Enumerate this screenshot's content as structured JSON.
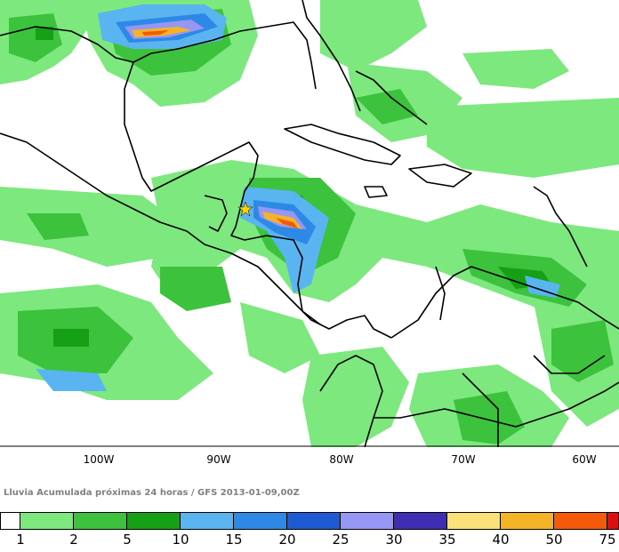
{
  "caption": "Lluvia Acumulada próximas 24 horas / GFS 2013-01-09,00Z",
  "longitude_labels": [
    "100W",
    "90W",
    "80W",
    "70W",
    "60W"
  ],
  "legend": {
    "colors": [
      "#ffffff",
      "#7de87d",
      "#3cc23c",
      "#16a016",
      "#5ab4f0",
      "#2e88e6",
      "#1e5ad2",
      "#9696f5",
      "#3e2eb4",
      "#fae178",
      "#f5b428",
      "#f55a0a",
      "#dc0f0f"
    ],
    "ticks": [
      "1",
      "2",
      "5",
      "10",
      "15",
      "20",
      "25",
      "30",
      "35",
      "40",
      "50",
      "75"
    ]
  },
  "map": {
    "land_color": "#ffffff",
    "border_color": "#000000",
    "star_color": "#ffd200"
  }
}
